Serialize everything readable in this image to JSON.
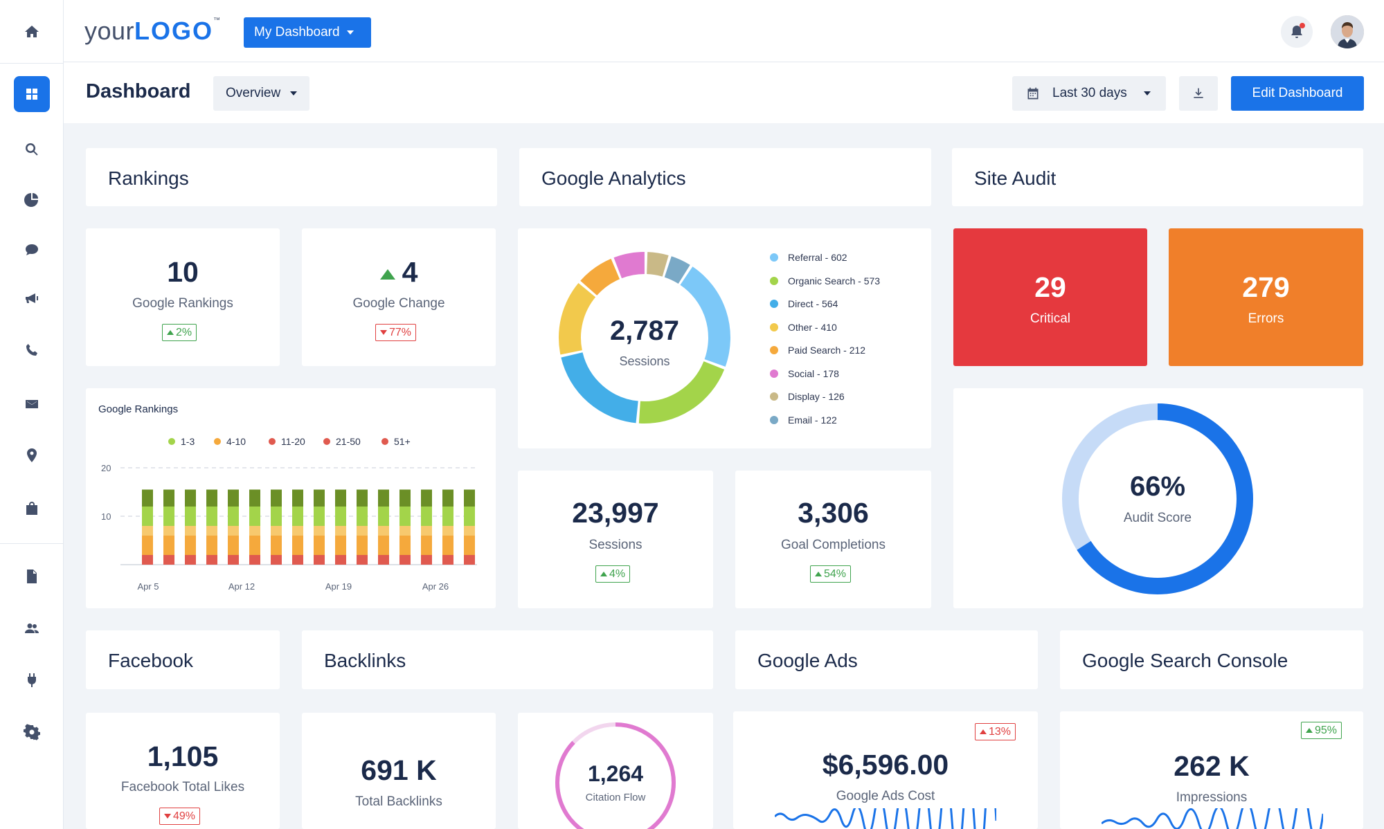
{
  "topbar": {
    "logo_prefix": "your",
    "logo_main": "LOGO",
    "logo_tm": "™",
    "dashboard_menu": "My Dashboard"
  },
  "header": {
    "title": "Dashboard",
    "view_select": "Overview",
    "date_range": "Last 30 days",
    "edit_button": "Edit Dashboard"
  },
  "sidebar": {
    "icons": [
      "home-icon",
      "dashboard-icon",
      "search-icon",
      "pie-chart-icon",
      "chat-icon",
      "megaphone-icon",
      "phone-icon",
      "mail-icon",
      "location-icon",
      "bag-icon",
      "document-icon",
      "users-icon",
      "plug-icon",
      "gear-icon"
    ]
  },
  "sections": {
    "rankings": "Rankings",
    "google_analytics": "Google Analytics",
    "site_audit": "Site Audit",
    "facebook": "Facebook",
    "backlinks": "Backlinks",
    "google_ads": "Google Ads",
    "google_search_console": "Google Search Console"
  },
  "rankings": {
    "google_rankings_value": "10",
    "google_rankings_label": "Google Rankings",
    "google_rankings_change": "2%",
    "google_change_value": "4",
    "google_change_label": "Google Change",
    "google_change_pct": "77%"
  },
  "analytics": {
    "donut_value": "2,787",
    "donut_label": "Sessions",
    "legend": [
      {
        "label": "Referral - 602",
        "value": 602,
        "color": "#7cc8f8"
      },
      {
        "label": "Organic Search - 573",
        "value": 573,
        "color": "#a3d44a"
      },
      {
        "label": "Direct - 564",
        "value": 564,
        "color": "#43aee8"
      },
      {
        "label": "Other - 410",
        "value": 410,
        "color": "#f2c94c"
      },
      {
        "label": "Paid Search - 212",
        "value": 212,
        "color": "#f5a93c"
      },
      {
        "label": "Social - 178",
        "value": 178,
        "color": "#e07ad0"
      },
      {
        "label": "Display - 126",
        "value": 126,
        "color": "#c9b987"
      },
      {
        "label": "Email - 122",
        "value": 122,
        "color": "#7aa9c6"
      }
    ],
    "sessions_value": "23,997",
    "sessions_label": "Sessions",
    "sessions_change": "4%",
    "goals_value": "3,306",
    "goals_label": "Goal Completions",
    "goals_change": "54%"
  },
  "site_audit": {
    "critical_value": "29",
    "critical_label": "Critical",
    "critical_color": "#e5393e",
    "errors_value": "279",
    "errors_label": "Errors",
    "errors_color": "#f07f2a",
    "score_value": "66%",
    "score_label": "Audit Score",
    "score_fraction": 0.66
  },
  "facebook": {
    "likes_value": "1,105",
    "likes_label": "Facebook Total Likes",
    "likes_change": "49%"
  },
  "backlinks": {
    "total_value": "691 K",
    "total_label": "Total Backlinks",
    "citation_value": "1,264",
    "citation_label": "Citation Flow"
  },
  "google_ads": {
    "cost_value": "$6,596.00",
    "cost_label": "Google Ads Cost",
    "cost_change": "13%"
  },
  "search_console": {
    "impressions_value": "262 K",
    "impressions_label": "Impressions",
    "impressions_change": "95%"
  },
  "chart_data": {
    "type": "bar",
    "title": "Google Rankings",
    "legend": [
      {
        "name": "1-3",
        "color": "#a3d44a"
      },
      {
        "name": "4-10",
        "color": "#f5a93c"
      },
      {
        "name": "11-20",
        "color": "#e05a4f"
      },
      {
        "name": "21-50",
        "color": "#e05a4f"
      },
      {
        "name": "51+",
        "color": "#e05a4f"
      }
    ],
    "x_ticks": [
      "Apr 5",
      "Apr 12",
      "Apr 19",
      "Apr 26"
    ],
    "y_ticks": [
      "20",
      "10"
    ],
    "ylim": [
      0,
      20
    ],
    "bars": 16,
    "stack_segments": [
      {
        "color": "#e05a4f",
        "value": 2
      },
      {
        "color": "#f5a93c",
        "value": 4
      },
      {
        "color": "#f7c96e",
        "value": 2
      },
      {
        "color": "#a3d44a",
        "value": 4
      },
      {
        "color": "#6b8f26",
        "value": 3.5
      }
    ]
  }
}
